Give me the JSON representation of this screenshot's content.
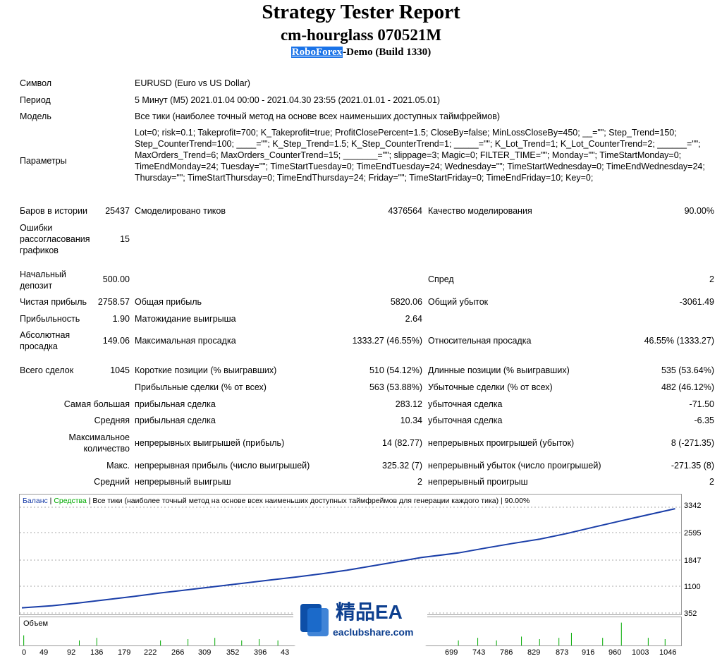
{
  "header": {
    "title": "Strategy Tester Report",
    "subtitle": "cm-hourglass 070521M",
    "broker_link": "RoboForex",
    "broker_rest": "-Demo (Build 1330)"
  },
  "report": {
    "symbol_label": "Символ",
    "symbol_value": "EURUSD (Euro vs US Dollar)",
    "period_label": "Период",
    "period_value": "5 Минут (M5) 2021.01.04 00:00 - 2021.04.30 23:55 (2021.01.01 - 2021.05.01)",
    "model_label": "Модель",
    "model_value": "Все тики (наиболее точный метод на основе всех наименьших доступных таймфреймов)",
    "params_label": "Параметры",
    "params_value": "Lot=0; risk=0.1; Takeprofit=700; K_Takeprofit=true; ProfitClosePercent=1.5; CloseBy=false; MinLossCloseBy=450; __=\"\"; Step_Trend=150; Step_CounterTrend=100; ____=\"\"; K_Step_Trend=1.5; K_Step_CounterTrend=1; _____=\"\"; K_Lot_Trend=1; K_Lot_CounterTrend=2; ______=\"\"; MaxOrders_Trend=6; MaxOrders_CounterTrend=15; _______=\"\"; slippage=3; Magic=0; FILTER_TIME=\"\"; Monday=\"\"; TimeStartMonday=0; TimeEndMonday=24; Tuesday=\"\"; TimeStartTuesday=0; TimeEndTuesday=24; Wednesday=\"\"; TimeStartWednesday=0; TimeEndWednesday=24; Thursday=\"\"; TimeStartThursday=0; TimeEndThursday=24; Friday=\"\"; TimeStartFriday=0; TimeEndFriday=10; Key=0;",
    "bars_label": "Баров в истории",
    "bars_value": "25437",
    "ticks_label": "Смоделировано тиков",
    "ticks_value": "4376564",
    "quality_label": "Качество моделирования",
    "quality_value": "90.00%",
    "errors_label": "Ошибки рассогласования графиков",
    "errors_value": "15",
    "deposit_label": "Начальный депозит",
    "deposit_value": "500.00",
    "spread_label": "Спред",
    "spread_value": "2",
    "net_label": "Чистая прибыль",
    "net_value": "2758.57",
    "gross_profit_label": "Общая прибыль",
    "gross_profit_value": "5820.06",
    "gross_loss_label": "Общий убыток",
    "gross_loss_value": "-3061.49",
    "pf_label": "Прибыльность",
    "pf_value": "1.90",
    "expected_label": "Матожидание выигрыша",
    "expected_value": "2.64",
    "abs_dd_label": "Абсолютная просадка",
    "abs_dd_value": "149.06",
    "max_dd_label": "Максимальная просадка",
    "max_dd_value": "1333.27 (46.55%)",
    "rel_dd_label": "Относительная просадка",
    "rel_dd_value": "46.55% (1333.27)",
    "total_label": "Всего сделок",
    "total_value": "1045",
    "short_label": "Короткие позиции (% выигравших)",
    "short_value": "510 (54.12%)",
    "long_label": "Длинные позиции (% выигравших)",
    "long_value": "535 (53.64%)",
    "profit_trades_label": "Прибыльные сделки (% от всех)",
    "profit_trades_value": "563 (53.88%)",
    "loss_trades_label": "Убыточные сделки (% от всех)",
    "loss_trades_value": "482 (46.12%)",
    "largest_label": "Самая большая",
    "largest_profit_label": "прибыльная сделка",
    "largest_profit_value": "283.12",
    "largest_loss_label": "убыточная сделка",
    "largest_loss_value": "-71.50",
    "average_label": "Средняя",
    "average_profit_label": "прибыльная сделка",
    "average_profit_value": "10.34",
    "average_loss_label": "убыточная сделка",
    "average_loss_value": "-6.35",
    "max_label": "Максимальное количество",
    "max_wins_label": "непрерывных выигрышей (прибыль)",
    "max_wins_value": "14 (82.77)",
    "max_losses_label": "непрерывных проигрышей (убыток)",
    "max_losses_value": "8 (-271.35)",
    "maxc_label": "Макс.",
    "maxc_profit_label": "непрерывная прибыль (число выигрышей)",
    "maxc_profit_value": "325.32 (7)",
    "maxc_loss_label": "непрерывный убыток (число проигрышей)",
    "maxc_loss_value": "-271.35 (8)",
    "avgc_label": "Средний",
    "avgc_win_label": "непрерывный выигрыш",
    "avgc_win_value": "2",
    "avgc_loss_label": "непрерывный проигрыш",
    "avgc_loss_value": "2"
  },
  "chart_legend": {
    "balance": "Баланс",
    "sep1": " | ",
    "equity": "Средства",
    "rest": " | Все тики (наиболее точный метод на основе всех наименьших доступных таймфреймов для генерации каждого тика) | 90.00%",
    "balance_color": "#1a3ea8",
    "equity_color": "#00aa00"
  },
  "volume_label": "Объем",
  "watermark": {
    "title": "精品EA",
    "url": "eaclubshare.com"
  },
  "chart_data": {
    "type": "line",
    "title": "",
    "y_ticks": [
      "3342",
      "2595",
      "1847",
      "1100",
      "352"
    ],
    "x_ticks": [
      "0",
      "49",
      "92",
      "136",
      "179",
      "222",
      "266",
      "309",
      "352",
      "396",
      "43",
      "699",
      "743",
      "786",
      "829",
      "873",
      "916",
      "960",
      "1003",
      "1046"
    ],
    "ylim": [
      352,
      3342
    ],
    "xlim": [
      0,
      1050
    ],
    "series": [
      {
        "name": "Баланс",
        "x": [
          0,
          49,
          92,
          136,
          179,
          222,
          266,
          309,
          352,
          396,
          440,
          480,
          520,
          560,
          600,
          640,
          699,
          743,
          786,
          829,
          873,
          916,
          960,
          1003,
          1046
        ],
        "y": [
          500,
          560,
          640,
          730,
          820,
          920,
          1010,
          1100,
          1190,
          1280,
          1370,
          1460,
          1560,
          1680,
          1800,
          1920,
          2050,
          2190,
          2320,
          2440,
          2600,
          2780,
          2960,
          3130,
          3300
        ]
      }
    ],
    "volume_spikes": [
      {
        "x": 3,
        "v": 0.4
      },
      {
        "x": 92,
        "v": 0.2
      },
      {
        "x": 120,
        "v": 0.3
      },
      {
        "x": 222,
        "v": 0.2
      },
      {
        "x": 266,
        "v": 0.25
      },
      {
        "x": 309,
        "v": 0.3
      },
      {
        "x": 352,
        "v": 0.2
      },
      {
        "x": 380,
        "v": 0.25
      },
      {
        "x": 410,
        "v": 0.2
      },
      {
        "x": 610,
        "v": 0.45
      },
      {
        "x": 699,
        "v": 0.2
      },
      {
        "x": 730,
        "v": 0.3
      },
      {
        "x": 760,
        "v": 0.2
      },
      {
        "x": 800,
        "v": 0.35
      },
      {
        "x": 829,
        "v": 0.25
      },
      {
        "x": 860,
        "v": 0.3
      },
      {
        "x": 880,
        "v": 0.5
      },
      {
        "x": 930,
        "v": 0.3
      },
      {
        "x": 960,
        "v": 0.9
      },
      {
        "x": 1003,
        "v": 0.3
      },
      {
        "x": 1030,
        "v": 0.25
      }
    ]
  }
}
